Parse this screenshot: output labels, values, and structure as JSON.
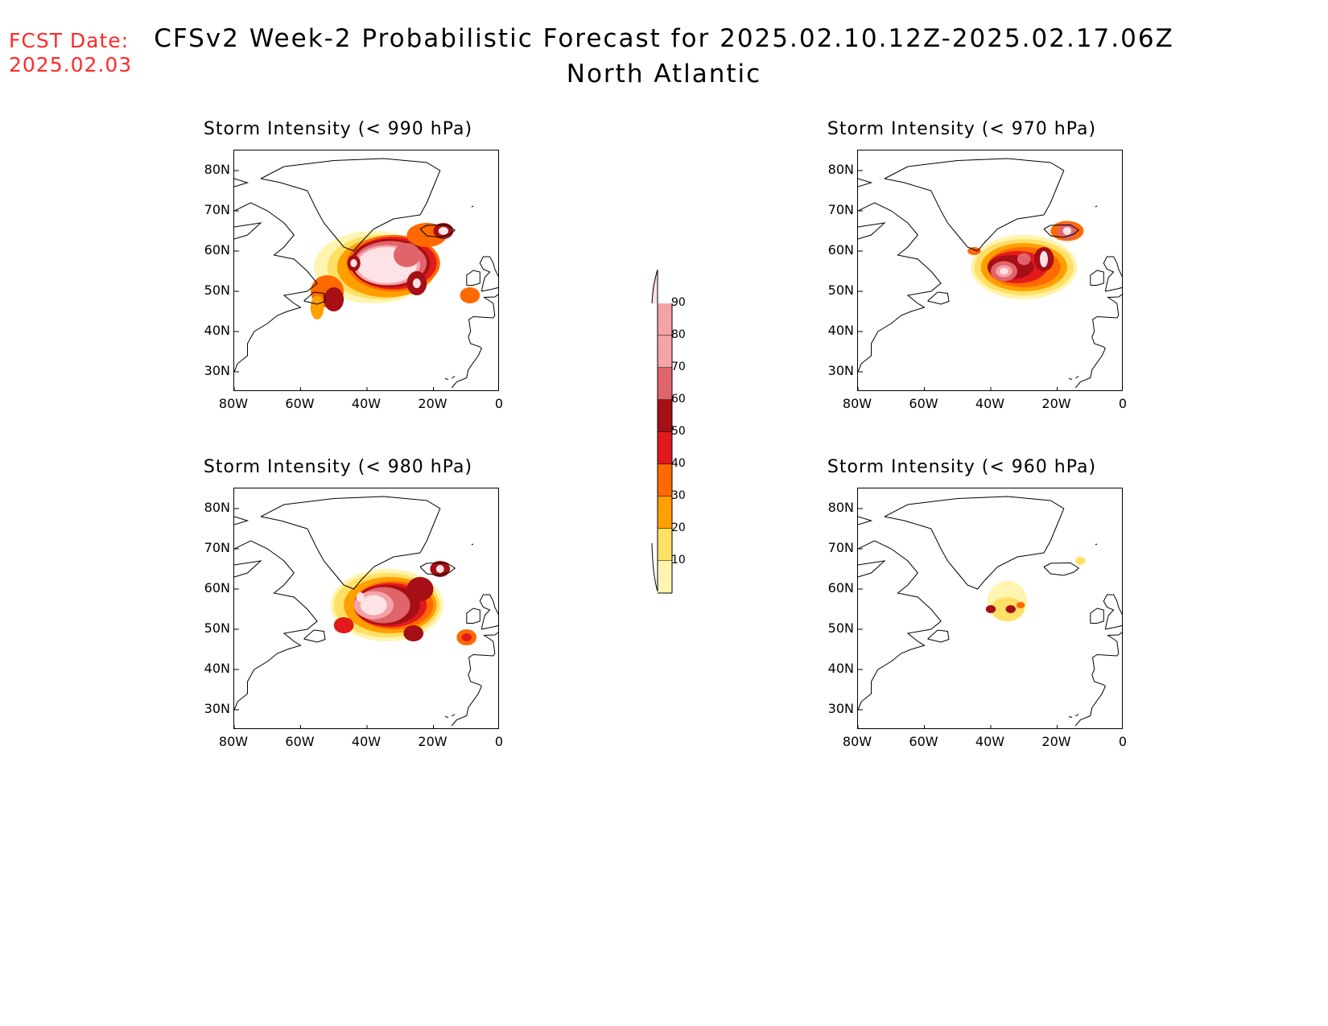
{
  "header": {
    "fcst_label": "FCST Date:",
    "fcst_date": "2025.02.03",
    "title": "CFSv2 Week-2 Probabilistic Forecast for 2025.02.10.12Z-2025.02.17.06Z",
    "region": "North Atlantic"
  },
  "axes": {
    "lat_labels": [
      "80N",
      "70N",
      "60N",
      "50N",
      "40N",
      "30N"
    ],
    "lon_labels": [
      "80W",
      "60W",
      "40W",
      "20W",
      "0"
    ]
  },
  "panels": [
    {
      "title": "Storm Intensity (< 990 hPa)",
      "threshold_hpa": 990
    },
    {
      "title": "Storm Intensity (< 970 hPa)",
      "threshold_hpa": 970
    },
    {
      "title": "Storm Intensity (< 980 hPa)",
      "threshold_hpa": 980
    },
    {
      "title": "Storm Intensity (< 960 hPa)",
      "threshold_hpa": 960
    }
  ],
  "colorbar": {
    "labels": [
      "90",
      "80",
      "70",
      "60",
      "50",
      "40",
      "30",
      "20",
      "10"
    ],
    "colors": [
      "#fde3e5",
      "#f4a3a8",
      "#e0656a",
      "#a50f15",
      "#e31a1c",
      "#ff6a00",
      "#ff9f00",
      "#ffe066",
      "#fff5b0"
    ]
  }
}
